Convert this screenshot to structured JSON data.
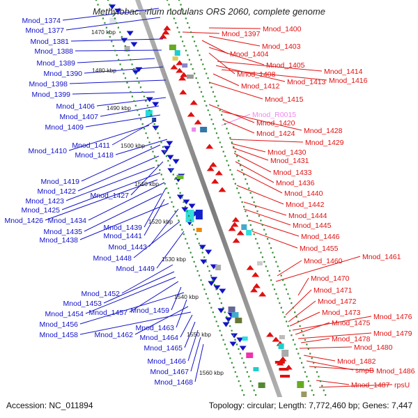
{
  "header": {
    "title": "Methylobacterium nodulans ORS 2060, complete genome"
  },
  "footer": {
    "accession": "Accession: NC_011894",
    "topology": "Topology: circular; Length: 7,772,460 bp; Genes: 7,447"
  },
  "colors": {
    "forward": "#1212c8",
    "reverse": "#e01010",
    "rna": "#ee88ee",
    "backbone": "#8c8c8c"
  },
  "ruler_labels": [
    "1470 kbp",
    "1480 kbp",
    "1490 kbp",
    "1500 kbp",
    "1510 kbp",
    "1520 kbp",
    "1530 kbp",
    "1540 kbp",
    "1550 kbp",
    "1560 kbp"
  ],
  "left_genes": [
    "Mnod_1374",
    "Mnod_1377",
    "Mnod_1381",
    "Mnod_1388",
    "Mnod_1389",
    "Mnod_1390",
    "Mnod_1398",
    "Mnod_1399",
    "Mnod_1406",
    "Mnod_1407",
    "Mnod_1409",
    "Mnod_1411",
    "Mnod_1410",
    "Mnod_1418",
    "Mnod_1419",
    "Mnod_1422",
    "Mnod_1427",
    "Mnod_1423",
    "Mnod_1425",
    "Mnod_1426",
    "Mnod_1434",
    "Mnod_1439",
    "Mnod_1435",
    "Mnod_1441",
    "Mnod_1438",
    "Mnod_1443",
    "Mnod_1448",
    "Mnod_1449",
    "Mnod_1452",
    "Mnod_1453",
    "Mnod_1454",
    "Mnod_1457",
    "Mnod_1459",
    "Mnod_1456",
    "Mnod_1463",
    "Mnod_1462",
    "Mnod_1458",
    "Mnod_1464",
    "Mnod_1465",
    "Mnod_1466",
    "Mnod_1467",
    "Mnod_1468"
  ],
  "right_genes": [
    "Mnod_1400",
    "Mnod_1397",
    "Mnod_1403",
    "Mnod_1404",
    "Mnod_1405",
    "Mnod_1408",
    "Mnod_1414",
    "Mnod_1413",
    "Mnod_1416",
    "Mnod_1412",
    "Mnod_1415",
    "Mnod_R0015",
    "Mnod_1420",
    "Mnod_1428",
    "Mnod_1424",
    "Mnod_1429",
    "Mnod_1430",
    "Mnod_1431",
    "Mnod_1433",
    "Mnod_1436",
    "Mnod_1440",
    "Mnod_1442",
    "Mnod_1444",
    "Mnod_1445",
    "Mnod_1446",
    "Mnod_1455",
    "Mnod_1461",
    "Mnod_1460",
    "Mnod_1470",
    "Mnod_1471",
    "Mnod_1472",
    "Mnod_1473",
    "Mnod_1476",
    "Mnod_1475",
    "Mnod_1479",
    "Mnod_1478",
    "Mnod_1480",
    "Mnod_1482",
    "smpB",
    "Mnod_1486",
    "Mnod_1487",
    "rpsU"
  ]
}
